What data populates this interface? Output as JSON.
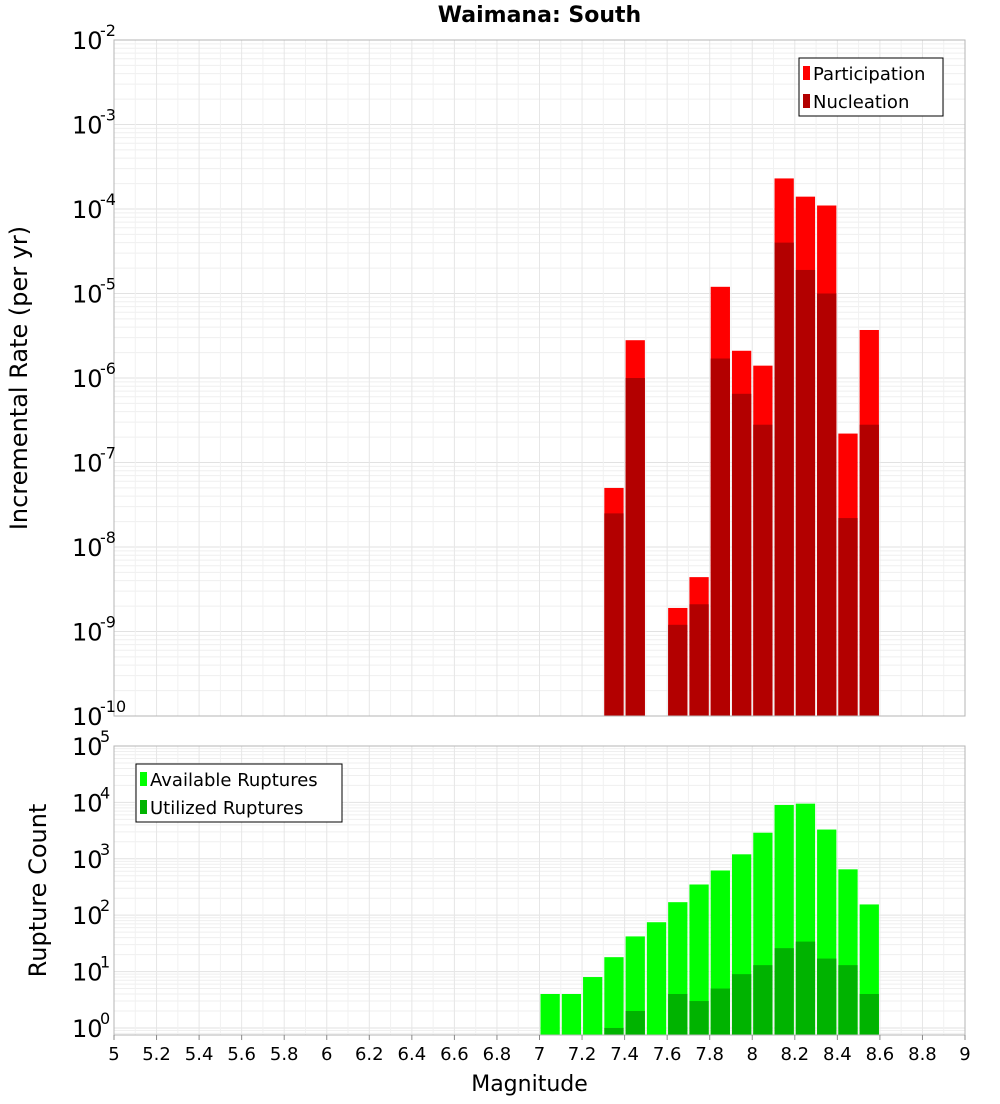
{
  "chart_data": [
    {
      "type": "bar",
      "title": "Waimana: South",
      "ylabel": "Incremental Rate (per yr)",
      "xlabel": "",
      "y_scale": "log",
      "ylim": [
        1e-10,
        0.01
      ],
      "xlim": [
        5,
        9
      ],
      "bar_width": 0.1,
      "grid": true,
      "legend_position": "top-right",
      "series": [
        {
          "name": "Participation",
          "color": "#ff0000",
          "x": [
            7.35,
            7.45,
            7.65,
            7.75,
            7.85,
            7.95,
            8.05,
            8.15,
            8.25,
            8.35,
            8.45,
            8.55
          ],
          "values": [
            5e-08,
            2.8e-06,
            1.9e-09,
            4.4e-09,
            1.2e-05,
            2.1e-06,
            1.4e-06,
            0.00023,
            0.00014,
            0.00011,
            2.2e-07,
            3.7e-06
          ]
        },
        {
          "name": "Nucleation",
          "color": "#b30000",
          "x": [
            7.35,
            7.45,
            7.65,
            7.75,
            7.85,
            7.95,
            8.05,
            8.15,
            8.25,
            8.35,
            8.45,
            8.55
          ],
          "values": [
            2.5e-08,
            1e-06,
            1.2e-09,
            2.1e-09,
            1.7e-06,
            6.5e-07,
            2.8e-07,
            4e-05,
            1.9e-05,
            1e-05,
            2.2e-08,
            2.8e-07
          ]
        }
      ],
      "y_ticks": [
        {
          "base": "10",
          "exp": "-2"
        },
        {
          "base": "10",
          "exp": "-3"
        },
        {
          "base": "10",
          "exp": "-4"
        },
        {
          "base": "10",
          "exp": "-5"
        },
        {
          "base": "10",
          "exp": "-6"
        },
        {
          "base": "10",
          "exp": "-7"
        },
        {
          "base": "10",
          "exp": "-8"
        },
        {
          "base": "10",
          "exp": "-9"
        },
        {
          "base": "10",
          "exp": "-10"
        }
      ]
    },
    {
      "type": "bar",
      "title": "",
      "ylabel": "Rupture Count",
      "xlabel": "Magnitude",
      "y_scale": "log",
      "ylim": [
        0.75,
        100000
      ],
      "xlim": [
        5,
        9
      ],
      "bar_width": 0.1,
      "grid": true,
      "legend_position": "top-left",
      "series": [
        {
          "name": "Available Ruptures",
          "color": "#00ff00",
          "x": [
            7.05,
            7.15,
            7.25,
            7.35,
            7.45,
            7.55,
            7.65,
            7.75,
            7.85,
            7.95,
            8.05,
            8.15,
            8.25,
            8.35,
            8.45,
            8.55
          ],
          "values": [
            4,
            4,
            8,
            18,
            42,
            75,
            170,
            350,
            620,
            1200,
            2900,
            9000,
            9500,
            3300,
            650,
            155
          ]
        },
        {
          "name": "Utilized Ruptures",
          "color": "#00b300",
          "x": [
            7.35,
            7.45,
            7.65,
            7.75,
            7.85,
            7.95,
            8.05,
            8.15,
            8.25,
            8.35,
            8.45,
            8.55
          ],
          "values": [
            1,
            2,
            4,
            3,
            5,
            9,
            13,
            26,
            34,
            17,
            13,
            4
          ]
        }
      ],
      "y_ticks": [
        {
          "base": "10",
          "exp": "5"
        },
        {
          "base": "10",
          "exp": "4"
        },
        {
          "base": "10",
          "exp": "3"
        },
        {
          "base": "10",
          "exp": "2"
        },
        {
          "base": "10",
          "exp": "1"
        },
        {
          "base": "10",
          "exp": "0"
        }
      ],
      "x_ticks": [
        "5",
        "5.2",
        "5.4",
        "5.6",
        "5.8",
        "6",
        "6.2",
        "6.4",
        "6.6",
        "6.8",
        "7",
        "7.2",
        "7.4",
        "7.6",
        "7.8",
        "8",
        "8.2",
        "8.4",
        "8.6",
        "8.8",
        "9"
      ]
    }
  ]
}
